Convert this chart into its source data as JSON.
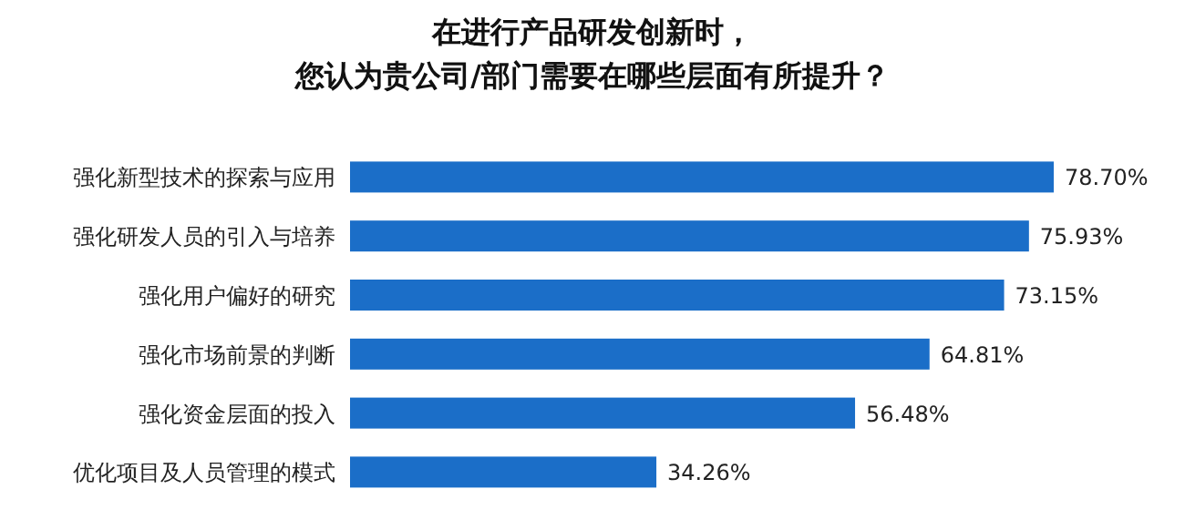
{
  "chart_data": {
    "type": "bar",
    "orientation": "horizontal",
    "title": "在进行产品研发创新时，",
    "subtitle": "您认为贵公司/部门需要在哪些层面有所提升？",
    "categories": [
      "强化新型技术的探索与应用",
      "强化研发人员的引入与培养",
      "强化用户偏好的研究",
      "强化市场前景的判断",
      "强化资金层面的投入",
      "优化项目及人员管理的模式"
    ],
    "values": [
      78.7,
      75.93,
      73.15,
      64.81,
      56.48,
      34.26
    ],
    "value_labels": [
      "78.70%",
      "75.93%",
      "73.15%",
      "64.81%",
      "56.48%",
      "34.26%"
    ],
    "color": "#1b6ec8"
  }
}
